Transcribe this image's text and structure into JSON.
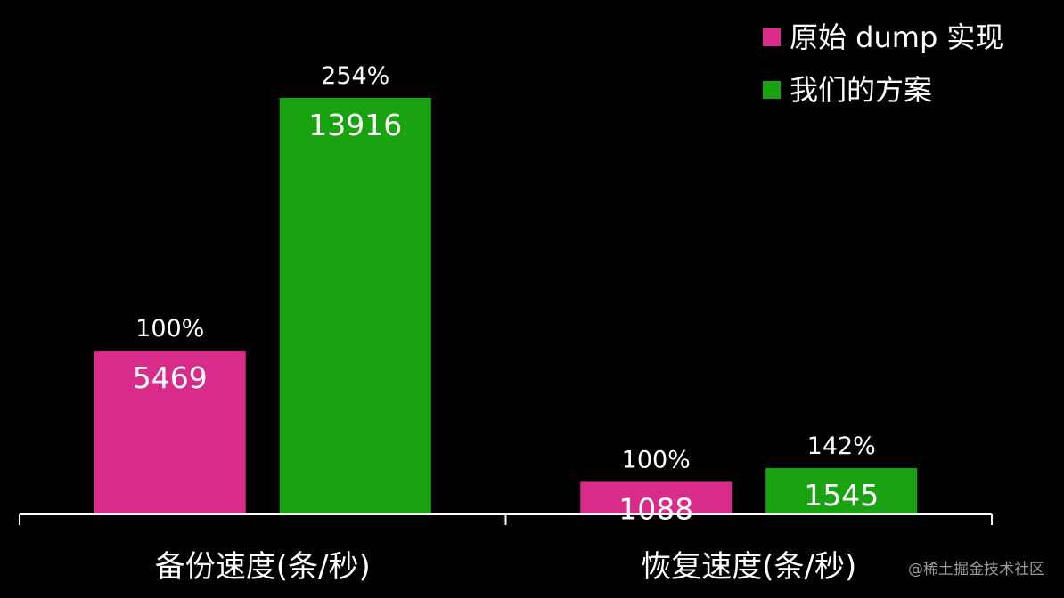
{
  "chart_data": {
    "type": "bar",
    "categories": [
      "备份速度(条/秒)",
      "恢复速度(条/秒)"
    ],
    "series": [
      {
        "name": "原始 dump 实现",
        "color": "#d92b8a",
        "values": [
          5469,
          1088
        ],
        "labels": [
          "5469",
          "1088"
        ],
        "percent_labels": [
          "100%",
          "100%"
        ]
      },
      {
        "name": "我们的方案",
        "color": "#1aa310",
        "values": [
          13916,
          1545
        ],
        "labels": [
          "13916",
          "1545"
        ],
        "percent_labels": [
          "254%",
          "142%"
        ]
      }
    ],
    "legend_position": "top-right",
    "grid": false,
    "y_axis_visible": false
  },
  "watermark": "@稀土掘金技术社区"
}
